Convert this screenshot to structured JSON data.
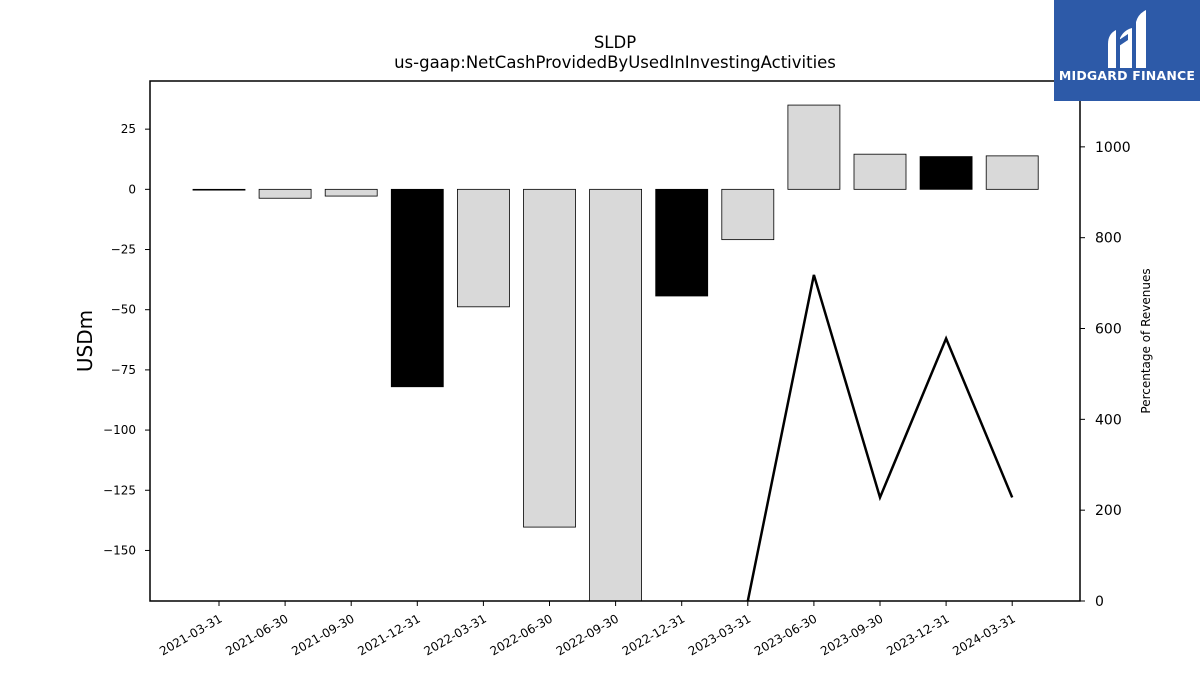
{
  "chart_data": {
    "type": "bar",
    "title": "SLDP",
    "subtitle": "us-gaap:NetCashProvidedByUsedInInvestingActivities",
    "ylabel": "USDm",
    "y2label": "Percentage of Revenues",
    "categories": [
      "2021-03-31",
      "2021-06-30",
      "2021-09-30",
      "2021-12-31",
      "2022-03-31",
      "2022-06-30",
      "2022-09-30",
      "2022-12-31",
      "2023-03-31",
      "2023-06-30",
      "2023-09-30",
      "2023-12-31",
      "2024-03-31"
    ],
    "values": [
      -0.3,
      -3.7,
      -2.8,
      -82.0,
      -48.8,
      -140.3,
      -171.0,
      -44.3,
      -20.9,
      35.0,
      14.6,
      13.6,
      13.9
    ],
    "bar_colors": [
      "#d9d9d9",
      "#d9d9d9",
      "#d9d9d9",
      "#000000",
      "#d9d9d9",
      "#d9d9d9",
      "#d9d9d9",
      "#000000",
      "#d9d9d9",
      "#d9d9d9",
      "#d9d9d9",
      "#000000",
      "#d9d9d9"
    ],
    "ylim": [
      -171,
      45
    ],
    "yticks": [
      25,
      0,
      -25,
      -50,
      -75,
      -100,
      -125,
      -150
    ],
    "ytick_labels": [
      "25",
      "0",
      "−25",
      "−50",
      "−75",
      "−100",
      "−125",
      "−150"
    ],
    "line_series": {
      "name": "Percentage of Revenues",
      "x": [
        "2023-03-31",
        "2023-06-30",
        "2023-09-30",
        "2023-12-31",
        "2024-03-31"
      ],
      "values": [
        0,
        718,
        228,
        578,
        228
      ]
    },
    "y2lim": [
      0,
      1145
    ],
    "y2ticks": [
      0,
      200,
      400,
      600,
      800,
      1000
    ],
    "y2tick_labels": [
      "0",
      "200",
      "400",
      "600",
      "800",
      "1000"
    ],
    "grid": false,
    "legend": "none"
  },
  "logo": {
    "text": "MIDGARD FINANCE",
    "color": "#2d5aa8"
  }
}
